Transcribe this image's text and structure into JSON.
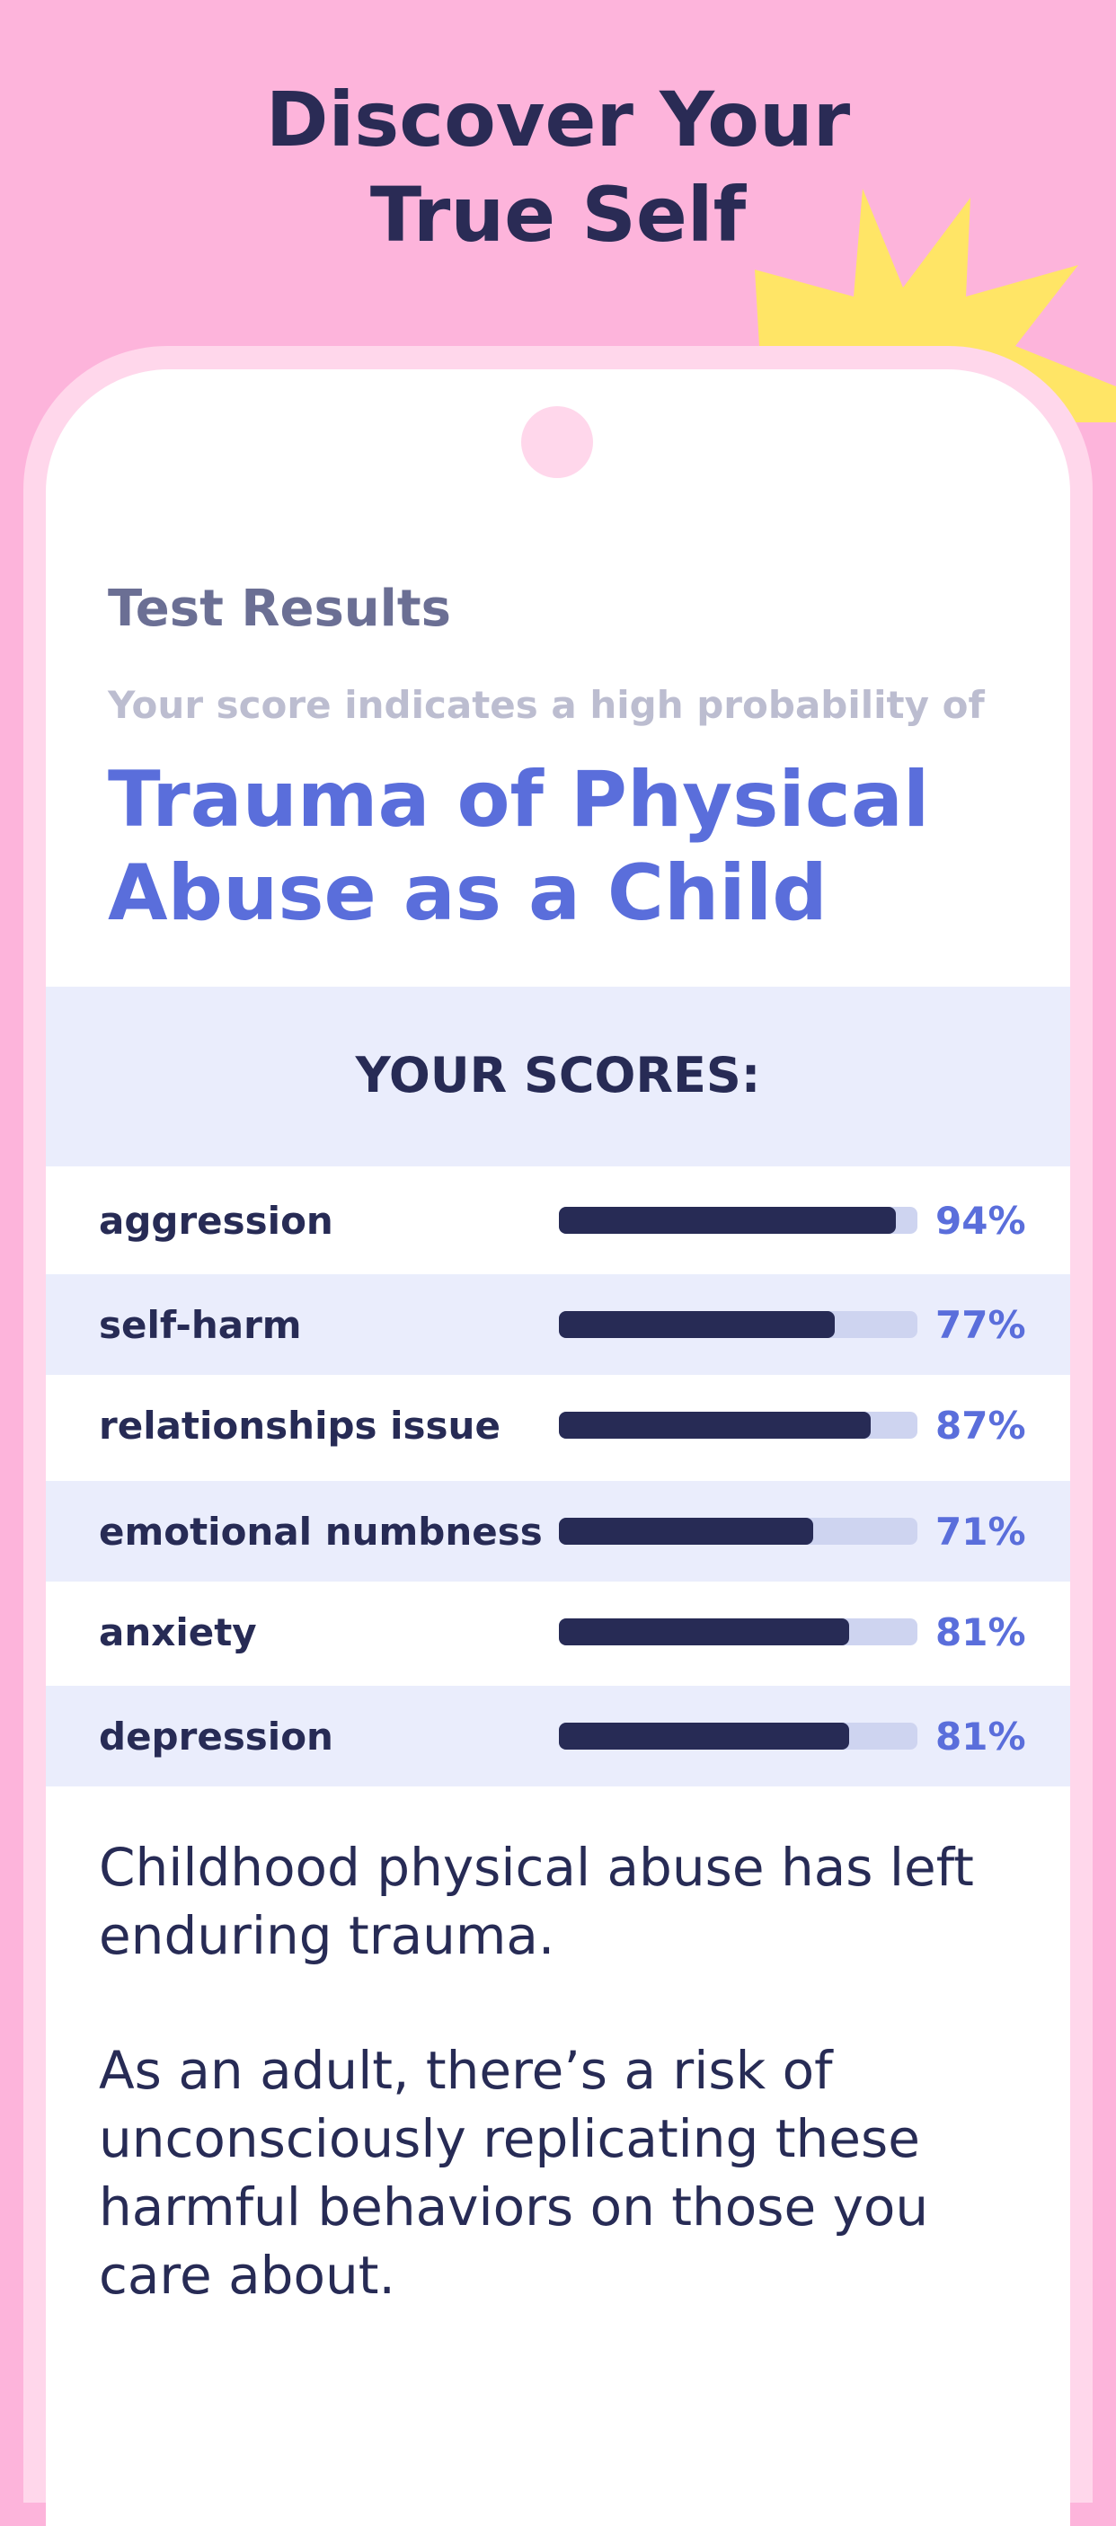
{
  "header": {
    "title": "Discover Your True Self"
  },
  "card": {
    "heading": "Test Results",
    "subtitle": "Your score indicates a high probability of",
    "diagnosis": "Trauma of Physical Abuse as a Child"
  },
  "scores": {
    "title": "YOUR SCORES:",
    "xlim": [
      0,
      100
    ],
    "rows": [
      {
        "label": "aggression",
        "value": 94,
        "value_label": "94%"
      },
      {
        "label": "self-harm",
        "value": 77,
        "value_label": "77%"
      },
      {
        "label": "relationships issue",
        "value": 87,
        "value_label": "87%"
      },
      {
        "label": "emotional numbness",
        "value": 71,
        "value_label": "71%"
      },
      {
        "label": "anxiety",
        "value": 81,
        "value_label": "81%"
      },
      {
        "label": "depression",
        "value": 81,
        "value_label": "81%"
      }
    ]
  },
  "body": {
    "paragraphs": [
      "Childhood physical abuse has left enduring trauma.",
      "As an adult, there’s a risk of unconsciously replicating these harmful behaviors on those you care about."
    ]
  }
}
